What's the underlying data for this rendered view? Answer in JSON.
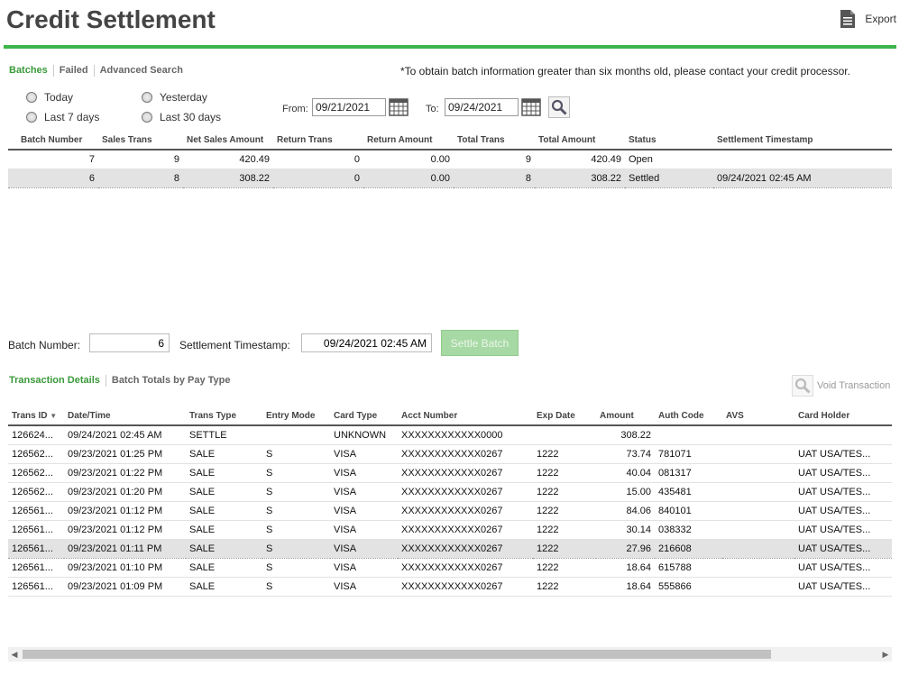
{
  "header": {
    "title": "Credit Settlement",
    "export_label": "Export"
  },
  "tabs": [
    {
      "label": "Batches",
      "active": true
    },
    {
      "label": "Failed",
      "active": false
    },
    {
      "label": "Advanced Search",
      "active": false
    }
  ],
  "notice": "*To obtain batch information greater than six months old, please contact your credit processor.",
  "date_range": {
    "options": [
      "Today",
      "Yesterday",
      "Last 7 days",
      "Last 30 days"
    ],
    "from_label": "From:",
    "from_value": "09/21/2021",
    "to_label": "To:",
    "to_value": "09/24/2021"
  },
  "batches": {
    "columns": [
      "Batch Number",
      "Sales Trans",
      "Net Sales Amount",
      "Return Trans",
      "Return Amount",
      "Total Trans",
      "Total Amount",
      "Status",
      "Settlement Timestamp"
    ],
    "rows": [
      [
        "7",
        "9",
        "420.49",
        "0",
        "0.00",
        "9",
        "420.49",
        "Open",
        ""
      ],
      [
        "6",
        "8",
        "308.22",
        "0",
        "0.00",
        "8",
        "308.22",
        "Settled",
        "09/24/2021 02:45 AM"
      ]
    ],
    "selected_index": 1
  },
  "batch_detail": {
    "batch_number_label": "Batch Number:",
    "batch_number_value": "6",
    "timestamp_label": "Settlement Timestamp:",
    "timestamp_value": "09/24/2021 02:45 AM",
    "settle_button": "Settle Batch"
  },
  "detail_tabs": [
    {
      "label": "Transaction Details",
      "active": true
    },
    {
      "label": "Batch Totals by Pay Type",
      "active": false
    }
  ],
  "void_label": "Void Transaction",
  "transactions": {
    "columns": [
      "Trans ID",
      "Date/Time",
      "Trans Type",
      "Entry Mode",
      "Card Type",
      "Acct Number",
      "Exp Date",
      "Amount",
      "Auth Code",
      "AVS",
      "Card Holder"
    ],
    "sort_column": "Trans ID",
    "rows": [
      [
        "126624...",
        "09/24/2021 02:45 AM",
        "SETTLE",
        "",
        "UNKNOWN",
        "XXXXXXXXXXXX0000",
        "",
        "308.22",
        "",
        "",
        ""
      ],
      [
        "126562...",
        "09/23/2021 01:25 PM",
        "SALE",
        "S",
        "VISA",
        "XXXXXXXXXXXX0267",
        "1222",
        "73.74",
        "781071",
        "",
        "UAT USA/TES..."
      ],
      [
        "126562...",
        "09/23/2021 01:22 PM",
        "SALE",
        "S",
        "VISA",
        "XXXXXXXXXXXX0267",
        "1222",
        "40.04",
        "081317",
        "",
        "UAT USA/TES..."
      ],
      [
        "126562...",
        "09/23/2021 01:20 PM",
        "SALE",
        "S",
        "VISA",
        "XXXXXXXXXXXX0267",
        "1222",
        "15.00",
        "435481",
        "",
        "UAT USA/TES..."
      ],
      [
        "126561...",
        "09/23/2021 01:12 PM",
        "SALE",
        "S",
        "VISA",
        "XXXXXXXXXXXX0267",
        "1222",
        "84.06",
        "840101",
        "",
        "UAT USA/TES..."
      ],
      [
        "126561...",
        "09/23/2021 01:12 PM",
        "SALE",
        "S",
        "VISA",
        "XXXXXXXXXXXX0267",
        "1222",
        "30.14",
        "038332",
        "",
        "UAT USA/TES..."
      ],
      [
        "126561...",
        "09/23/2021 01:11 PM",
        "SALE",
        "S",
        "VISA",
        "XXXXXXXXXXXX0267",
        "1222",
        "27.96",
        "216608",
        "",
        "UAT USA/TES..."
      ],
      [
        "126561...",
        "09/23/2021 01:10 PM",
        "SALE",
        "S",
        "VISA",
        "XXXXXXXXXXXX0267",
        "1222",
        "18.64",
        "615788",
        "",
        "UAT USA/TES..."
      ],
      [
        "126561...",
        "09/23/2021 01:09 PM",
        "SALE",
        "S",
        "VISA",
        "XXXXXXXXXXXX0267",
        "1222",
        "18.64",
        "555866",
        "",
        "UAT USA/TES..."
      ]
    ],
    "selected_index": 6
  },
  "icons": {
    "export": "document-icon",
    "calendar": "calendar-icon",
    "search": "search-icon",
    "void": "search-icon",
    "sort": "sort-desc-icon",
    "scroll_left": "chevron-left-icon",
    "scroll_right": "chevron-right-icon"
  },
  "colors": {
    "accent": "#3db54a",
    "active_tab": "#3a9a3a",
    "settle_disabled": "#a7d9a4",
    "selected_row": "#e3e3e3"
  }
}
